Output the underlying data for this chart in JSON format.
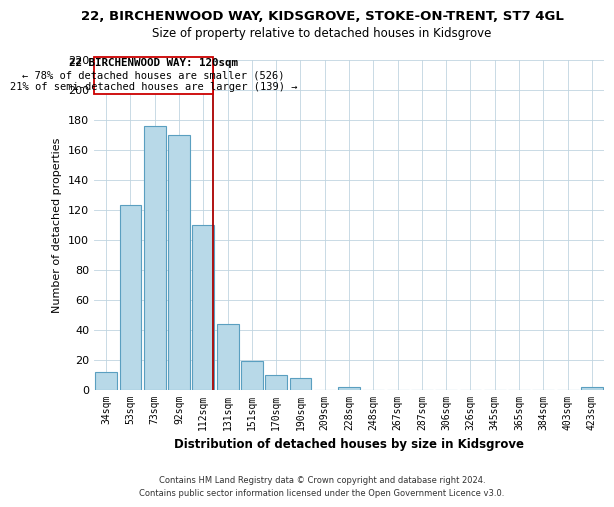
{
  "title_line1": "22, BIRCHENWOOD WAY, KIDSGROVE, STOKE-ON-TRENT, ST7 4GL",
  "title_line2": "Size of property relative to detached houses in Kidsgrove",
  "xlabel": "Distribution of detached houses by size in Kidsgrove",
  "ylabel": "Number of detached properties",
  "categories": [
    "34sqm",
    "53sqm",
    "73sqm",
    "92sqm",
    "112sqm",
    "131sqm",
    "151sqm",
    "170sqm",
    "190sqm",
    "209sqm",
    "228sqm",
    "248sqm",
    "267sqm",
    "287sqm",
    "306sqm",
    "326sqm",
    "345sqm",
    "365sqm",
    "384sqm",
    "403sqm",
    "423sqm"
  ],
  "values": [
    12,
    123,
    176,
    170,
    110,
    44,
    19,
    10,
    8,
    0,
    2,
    0,
    0,
    0,
    0,
    0,
    0,
    0,
    0,
    0,
    2
  ],
  "bar_color": "#b8d9e8",
  "bar_edge_color": "#5a9fc0",
  "ylim": [
    0,
    220
  ],
  "yticks": [
    0,
    20,
    40,
    60,
    80,
    100,
    120,
    140,
    160,
    180,
    200,
    220
  ],
  "vline_x_pos": 4.42,
  "vline_color": "#aa0000",
  "annotation_title": "22 BIRCHENWOOD WAY: 120sqm",
  "annotation_line1": "← 78% of detached houses are smaller (526)",
  "annotation_line2": "21% of semi-detached houses are larger (139) →",
  "annotation_box_color": "#ffffff",
  "annotation_box_edge_color": "#cc0000",
  "footer_line1": "Contains HM Land Registry data © Crown copyright and database right 2024.",
  "footer_line2": "Contains public sector information licensed under the Open Government Licence v3.0.",
  "background_color": "#ffffff",
  "grid_color": "#c0d4e0"
}
